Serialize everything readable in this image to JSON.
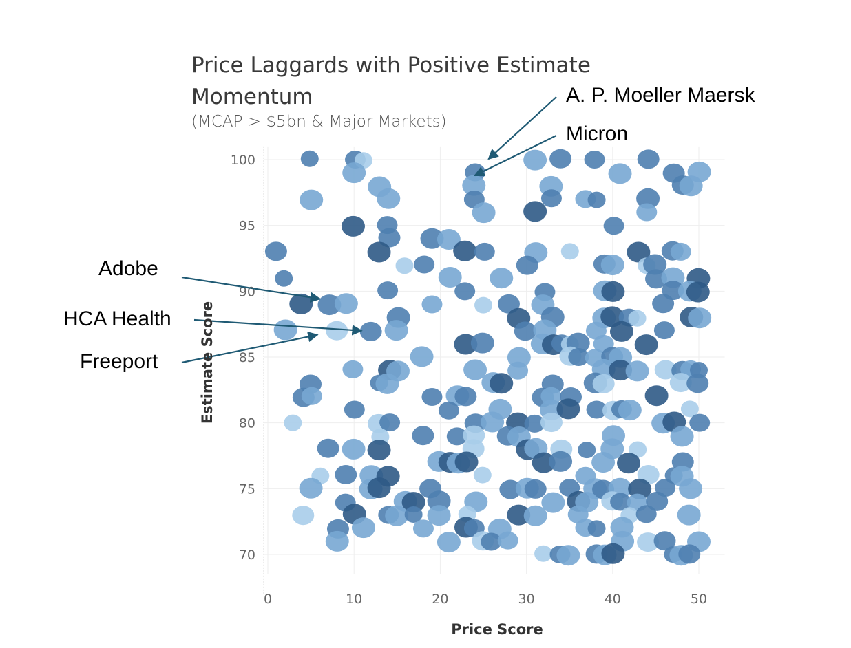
{
  "chart_data": {
    "type": "scatter",
    "title": "Price Laggards with Positive Estimate Momentum",
    "subtitle": "(MCAP > $5bn & Major Markets)",
    "xlabel": "Price Score",
    "ylabel": "Estimate Score",
    "xlim": [
      0,
      53
    ],
    "ylim": [
      68.5,
      101
    ],
    "x_ticks": [
      0,
      10,
      20,
      30,
      40,
      50
    ],
    "y_ticks": [
      70,
      75,
      80,
      85,
      90,
      95,
      100
    ],
    "x_tick_labels": [
      "0",
      "10",
      "20",
      "30",
      "40",
      "50"
    ],
    "y_tick_labels": [
      "70",
      "75",
      "80",
      "85",
      "90",
      "95",
      "100"
    ],
    "grid": true,
    "legend": "none",
    "colors": {
      "dark": "#2f5a86",
      "mid": "#4f7fb0",
      "light": "#78a7d3",
      "pale": "#a9cdea",
      "arrow": "#1f5a74"
    },
    "annotations": [
      {
        "label": "A. P. Moeller Maersk",
        "x": 24,
        "y": 99
      },
      {
        "label": "Micron",
        "x": 24,
        "y": 98
      },
      {
        "label": "Adobe",
        "x": 7,
        "y": 89
      },
      {
        "label": "HCA Health",
        "x": 12,
        "y": 87
      },
      {
        "label": "Freeport",
        "x": 8,
        "y": 87
      }
    ],
    "points": [
      {
        "x": 5,
        "y": 100
      },
      {
        "x": 10,
        "y": 100
      },
      {
        "x": 11,
        "y": 100
      },
      {
        "x": 24,
        "y": 99
      },
      {
        "x": 31,
        "y": 100
      },
      {
        "x": 34,
        "y": 100
      },
      {
        "x": 38,
        "y": 100
      },
      {
        "x": 41,
        "y": 99
      },
      {
        "x": 44,
        "y": 100
      },
      {
        "x": 47,
        "y": 99
      },
      {
        "x": 50,
        "y": 99
      },
      {
        "x": 10,
        "y": 99
      },
      {
        "x": 13,
        "y": 98
      },
      {
        "x": 24,
        "y": 98
      },
      {
        "x": 33,
        "y": 98
      },
      {
        "x": 48,
        "y": 98
      },
      {
        "x": 49,
        "y": 98
      },
      {
        "x": 5,
        "y": 97
      },
      {
        "x": 14,
        "y": 97
      },
      {
        "x": 24,
        "y": 97
      },
      {
        "x": 33,
        "y": 97
      },
      {
        "x": 37,
        "y": 97
      },
      {
        "x": 38,
        "y": 97
      },
      {
        "x": 44,
        "y": 97
      },
      {
        "x": 25,
        "y": 96
      },
      {
        "x": 31,
        "y": 96
      },
      {
        "x": 44,
        "y": 96
      },
      {
        "x": 10,
        "y": 95
      },
      {
        "x": 14,
        "y": 95
      },
      {
        "x": 40,
        "y": 95
      },
      {
        "x": 14,
        "y": 94
      },
      {
        "x": 19,
        "y": 94
      },
      {
        "x": 21,
        "y": 94
      },
      {
        "x": 1,
        "y": 93
      },
      {
        "x": 13,
        "y": 93
      },
      {
        "x": 23,
        "y": 93
      },
      {
        "x": 25,
        "y": 93
      },
      {
        "x": 31,
        "y": 93
      },
      {
        "x": 35,
        "y": 93
      },
      {
        "x": 43,
        "y": 93
      },
      {
        "x": 47,
        "y": 93
      },
      {
        "x": 48,
        "y": 93
      },
      {
        "x": 16,
        "y": 92
      },
      {
        "x": 18,
        "y": 92
      },
      {
        "x": 30,
        "y": 92
      },
      {
        "x": 39,
        "y": 92
      },
      {
        "x": 40,
        "y": 92
      },
      {
        "x": 44,
        "y": 92
      },
      {
        "x": 45,
        "y": 92
      },
      {
        "x": 2,
        "y": 91
      },
      {
        "x": 21,
        "y": 91
      },
      {
        "x": 27,
        "y": 91
      },
      {
        "x": 45,
        "y": 91
      },
      {
        "x": 47,
        "y": 91
      },
      {
        "x": 50,
        "y": 91
      },
      {
        "x": 14,
        "y": 90
      },
      {
        "x": 23,
        "y": 90
      },
      {
        "x": 32,
        "y": 90
      },
      {
        "x": 39,
        "y": 90
      },
      {
        "x": 40,
        "y": 90
      },
      {
        "x": 47,
        "y": 90
      },
      {
        "x": 49,
        "y": 90
      },
      {
        "x": 50,
        "y": 90
      },
      {
        "x": 4,
        "y": 89
      },
      {
        "x": 7,
        "y": 89
      },
      {
        "x": 9,
        "y": 89
      },
      {
        "x": 19,
        "y": 89
      },
      {
        "x": 25,
        "y": 89
      },
      {
        "x": 28,
        "y": 89
      },
      {
        "x": 32,
        "y": 89
      },
      {
        "x": 46,
        "y": 89
      },
      {
        "x": 15,
        "y": 88
      },
      {
        "x": 29,
        "y": 88
      },
      {
        "x": 33,
        "y": 88
      },
      {
        "x": 39,
        "y": 88
      },
      {
        "x": 40,
        "y": 88
      },
      {
        "x": 42,
        "y": 88
      },
      {
        "x": 43,
        "y": 88
      },
      {
        "x": 49,
        "y": 88
      },
      {
        "x": 50,
        "y": 88
      },
      {
        "x": 2,
        "y": 87
      },
      {
        "x": 8,
        "y": 87
      },
      {
        "x": 12,
        "y": 87
      },
      {
        "x": 15,
        "y": 87
      },
      {
        "x": 30,
        "y": 87
      },
      {
        "x": 32,
        "y": 87
      },
      {
        "x": 38,
        "y": 87
      },
      {
        "x": 41,
        "y": 87
      },
      {
        "x": 46,
        "y": 87
      },
      {
        "x": 23,
        "y": 86
      },
      {
        "x": 25,
        "y": 86
      },
      {
        "x": 32,
        "y": 86
      },
      {
        "x": 33,
        "y": 86
      },
      {
        "x": 34,
        "y": 86
      },
      {
        "x": 35,
        "y": 86
      },
      {
        "x": 36,
        "y": 86
      },
      {
        "x": 39,
        "y": 86
      },
      {
        "x": 44,
        "y": 86
      },
      {
        "x": 18,
        "y": 85
      },
      {
        "x": 29,
        "y": 85
      },
      {
        "x": 35,
        "y": 85
      },
      {
        "x": 36,
        "y": 85
      },
      {
        "x": 38,
        "y": 85
      },
      {
        "x": 40,
        "y": 85
      },
      {
        "x": 41,
        "y": 85
      },
      {
        "x": 10,
        "y": 84
      },
      {
        "x": 14,
        "y": 84
      },
      {
        "x": 15,
        "y": 84
      },
      {
        "x": 24,
        "y": 84
      },
      {
        "x": 29,
        "y": 84
      },
      {
        "x": 39,
        "y": 84
      },
      {
        "x": 41,
        "y": 84
      },
      {
        "x": 43,
        "y": 84
      },
      {
        "x": 46,
        "y": 84
      },
      {
        "x": 48,
        "y": 84
      },
      {
        "x": 49,
        "y": 84
      },
      {
        "x": 50,
        "y": 84
      },
      {
        "x": 5,
        "y": 83
      },
      {
        "x": 13,
        "y": 83
      },
      {
        "x": 14,
        "y": 83
      },
      {
        "x": 26,
        "y": 83
      },
      {
        "x": 27,
        "y": 83
      },
      {
        "x": 33,
        "y": 83
      },
      {
        "x": 38,
        "y": 83
      },
      {
        "x": 39,
        "y": 83
      },
      {
        "x": 48,
        "y": 83
      },
      {
        "x": 50,
        "y": 83
      },
      {
        "x": 4,
        "y": 82
      },
      {
        "x": 5,
        "y": 82
      },
      {
        "x": 19,
        "y": 82
      },
      {
        "x": 22,
        "y": 82
      },
      {
        "x": 23,
        "y": 82
      },
      {
        "x": 32,
        "y": 82
      },
      {
        "x": 33,
        "y": 82
      },
      {
        "x": 35,
        "y": 82
      },
      {
        "x": 45,
        "y": 82
      },
      {
        "x": 10,
        "y": 81
      },
      {
        "x": 21,
        "y": 81
      },
      {
        "x": 27,
        "y": 81
      },
      {
        "x": 33,
        "y": 81
      },
      {
        "x": 35,
        "y": 81
      },
      {
        "x": 38,
        "y": 81
      },
      {
        "x": 40,
        "y": 81
      },
      {
        "x": 41,
        "y": 81
      },
      {
        "x": 42,
        "y": 81
      },
      {
        "x": 49,
        "y": 81
      },
      {
        "x": 3,
        "y": 80
      },
      {
        "x": 13,
        "y": 80
      },
      {
        "x": 14,
        "y": 80
      },
      {
        "x": 24,
        "y": 80
      },
      {
        "x": 26,
        "y": 80
      },
      {
        "x": 29,
        "y": 80
      },
      {
        "x": 31,
        "y": 80
      },
      {
        "x": 33,
        "y": 80
      },
      {
        "x": 46,
        "y": 80
      },
      {
        "x": 47,
        "y": 80
      },
      {
        "x": 50,
        "y": 80
      },
      {
        "x": 13,
        "y": 79
      },
      {
        "x": 18,
        "y": 79
      },
      {
        "x": 22,
        "y": 79
      },
      {
        "x": 24,
        "y": 79
      },
      {
        "x": 28,
        "y": 79
      },
      {
        "x": 29,
        "y": 79
      },
      {
        "x": 40,
        "y": 79
      },
      {
        "x": 48,
        "y": 79
      },
      {
        "x": 7,
        "y": 78
      },
      {
        "x": 10,
        "y": 78
      },
      {
        "x": 13,
        "y": 78
      },
      {
        "x": 24,
        "y": 78
      },
      {
        "x": 30,
        "y": 78
      },
      {
        "x": 31,
        "y": 78
      },
      {
        "x": 34,
        "y": 78
      },
      {
        "x": 37,
        "y": 78
      },
      {
        "x": 40,
        "y": 78
      },
      {
        "x": 43,
        "y": 78
      },
      {
        "x": 20,
        "y": 77
      },
      {
        "x": 21,
        "y": 77
      },
      {
        "x": 22,
        "y": 77
      },
      {
        "x": 23,
        "y": 77
      },
      {
        "x": 32,
        "y": 77
      },
      {
        "x": 34,
        "y": 77
      },
      {
        "x": 39,
        "y": 77
      },
      {
        "x": 42,
        "y": 77
      },
      {
        "x": 48,
        "y": 77
      },
      {
        "x": 6,
        "y": 76
      },
      {
        "x": 9,
        "y": 76
      },
      {
        "x": 12,
        "y": 76
      },
      {
        "x": 14,
        "y": 76
      },
      {
        "x": 25,
        "y": 76
      },
      {
        "x": 37,
        "y": 76
      },
      {
        "x": 44,
        "y": 76
      },
      {
        "x": 47,
        "y": 76
      },
      {
        "x": 48,
        "y": 76
      },
      {
        "x": 5,
        "y": 75
      },
      {
        "x": 12,
        "y": 75
      },
      {
        "x": 13,
        "y": 75
      },
      {
        "x": 19,
        "y": 75
      },
      {
        "x": 28,
        "y": 75
      },
      {
        "x": 30,
        "y": 75
      },
      {
        "x": 31,
        "y": 75
      },
      {
        "x": 35,
        "y": 75
      },
      {
        "x": 38,
        "y": 75
      },
      {
        "x": 39,
        "y": 75
      },
      {
        "x": 41,
        "y": 75
      },
      {
        "x": 43,
        "y": 75
      },
      {
        "x": 46,
        "y": 75
      },
      {
        "x": 49,
        "y": 75
      },
      {
        "x": 9,
        "y": 74
      },
      {
        "x": 16,
        "y": 74
      },
      {
        "x": 17,
        "y": 74
      },
      {
        "x": 20,
        "y": 74
      },
      {
        "x": 24,
        "y": 74
      },
      {
        "x": 33,
        "y": 74
      },
      {
        "x": 36,
        "y": 74
      },
      {
        "x": 37,
        "y": 74
      },
      {
        "x": 40,
        "y": 74
      },
      {
        "x": 41,
        "y": 74
      },
      {
        "x": 43,
        "y": 74
      },
      {
        "x": 45,
        "y": 74
      },
      {
        "x": 4,
        "y": 73
      },
      {
        "x": 10,
        "y": 73
      },
      {
        "x": 14,
        "y": 73
      },
      {
        "x": 15,
        "y": 73
      },
      {
        "x": 17,
        "y": 73
      },
      {
        "x": 20,
        "y": 73
      },
      {
        "x": 23,
        "y": 73
      },
      {
        "x": 29,
        "y": 73
      },
      {
        "x": 31,
        "y": 73
      },
      {
        "x": 36,
        "y": 73
      },
      {
        "x": 42,
        "y": 73
      },
      {
        "x": 44,
        "y": 73
      },
      {
        "x": 49,
        "y": 73
      },
      {
        "x": 8,
        "y": 72
      },
      {
        "x": 11,
        "y": 72
      },
      {
        "x": 18,
        "y": 72
      },
      {
        "x": 23,
        "y": 72
      },
      {
        "x": 24,
        "y": 72
      },
      {
        "x": 27,
        "y": 72
      },
      {
        "x": 37,
        "y": 72
      },
      {
        "x": 38,
        "y": 72
      },
      {
        "x": 41,
        "y": 72
      },
      {
        "x": 8,
        "y": 71
      },
      {
        "x": 21,
        "y": 71
      },
      {
        "x": 25,
        "y": 71
      },
      {
        "x": 26,
        "y": 71
      },
      {
        "x": 28,
        "y": 71
      },
      {
        "x": 41,
        "y": 71
      },
      {
        "x": 44,
        "y": 71
      },
      {
        "x": 46,
        "y": 71
      },
      {
        "x": 50,
        "y": 71
      },
      {
        "x": 32,
        "y": 70
      },
      {
        "x": 34,
        "y": 70
      },
      {
        "x": 35,
        "y": 70
      },
      {
        "x": 38,
        "y": 70
      },
      {
        "x": 39,
        "y": 70
      },
      {
        "x": 40,
        "y": 70
      },
      {
        "x": 47,
        "y": 70
      },
      {
        "x": 48,
        "y": 70
      },
      {
        "x": 49,
        "y": 70
      }
    ]
  }
}
